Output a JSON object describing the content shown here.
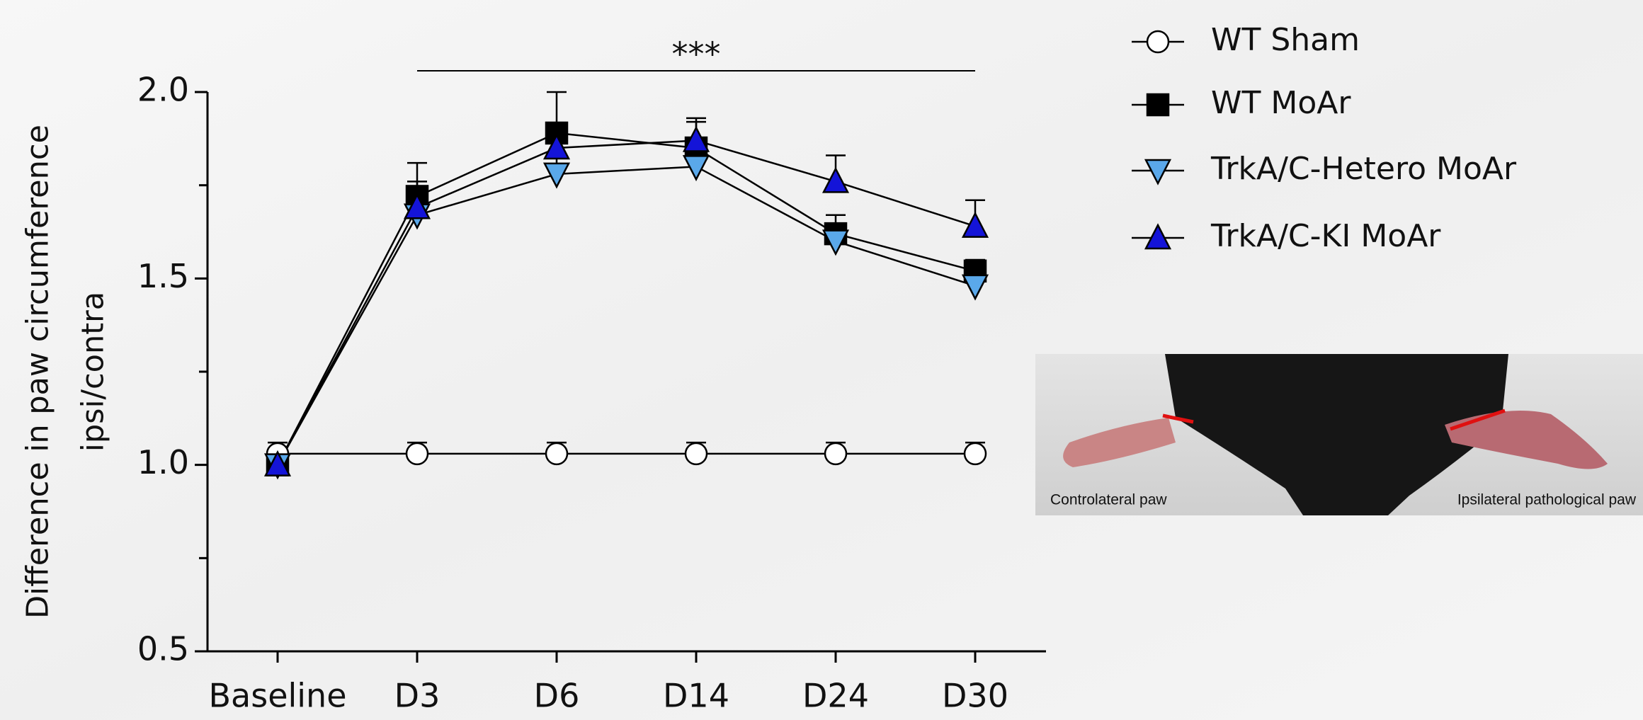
{
  "chart_data": {
    "type": "line",
    "ylabel": [
      "Difference in paw circumference",
      "ipsi/contra"
    ],
    "annotation": "***",
    "categories": [
      "Baseline",
      "D3",
      "D6",
      "D14",
      "D24",
      "D30"
    ],
    "series": [
      {
        "name": "WT Sham",
        "color": "#ffffff",
        "marker": "circle",
        "values": [
          1.03,
          1.03,
          1.03,
          1.03,
          1.03,
          1.03
        ],
        "errors": [
          0.03,
          0.03,
          0.03,
          0.03,
          0.03,
          0.03
        ]
      },
      {
        "name": "WT MoAr",
        "color": "#000000",
        "marker": "square",
        "values": [
          1.0,
          1.72,
          1.89,
          1.85,
          1.62,
          1.52
        ],
        "errors": [
          0.02,
          0.09,
          0.11,
          0.07,
          0.05,
          0.03
        ]
      },
      {
        "name": "TrkA/C-Hetero MoAr",
        "color": "#5aa8ea",
        "marker": "triangle-down",
        "values": [
          1.0,
          1.67,
          1.78,
          1.8,
          1.6,
          1.48
        ],
        "errors": [
          0.02,
          0.05,
          0.05,
          0.05,
          0.04,
          0.04
        ]
      },
      {
        "name": "TrkA/C-KI MoAr",
        "color": "#1414d8",
        "marker": "triangle-up",
        "values": [
          1.0,
          1.69,
          1.85,
          1.87,
          1.76,
          1.64
        ],
        "errors": [
          0.02,
          0.07,
          0.05,
          0.06,
          0.07,
          0.07
        ]
      }
    ],
    "ylim": [
      0.5,
      2.0
    ],
    "yticks": [
      {
        "value": 0.5,
        "label": "0.5"
      },
      {
        "value": 1.0,
        "label": "1.0"
      },
      {
        "value": 1.5,
        "label": "1.5"
      },
      {
        "value": 2.0,
        "label": "2.0"
      }
    ],
    "yminorticks": [
      0.75,
      1.25,
      1.75
    ],
    "legend": "top-right"
  },
  "image_labels": [
    "Controlateral paw",
    "Ipsilateral pathological paw"
  ]
}
